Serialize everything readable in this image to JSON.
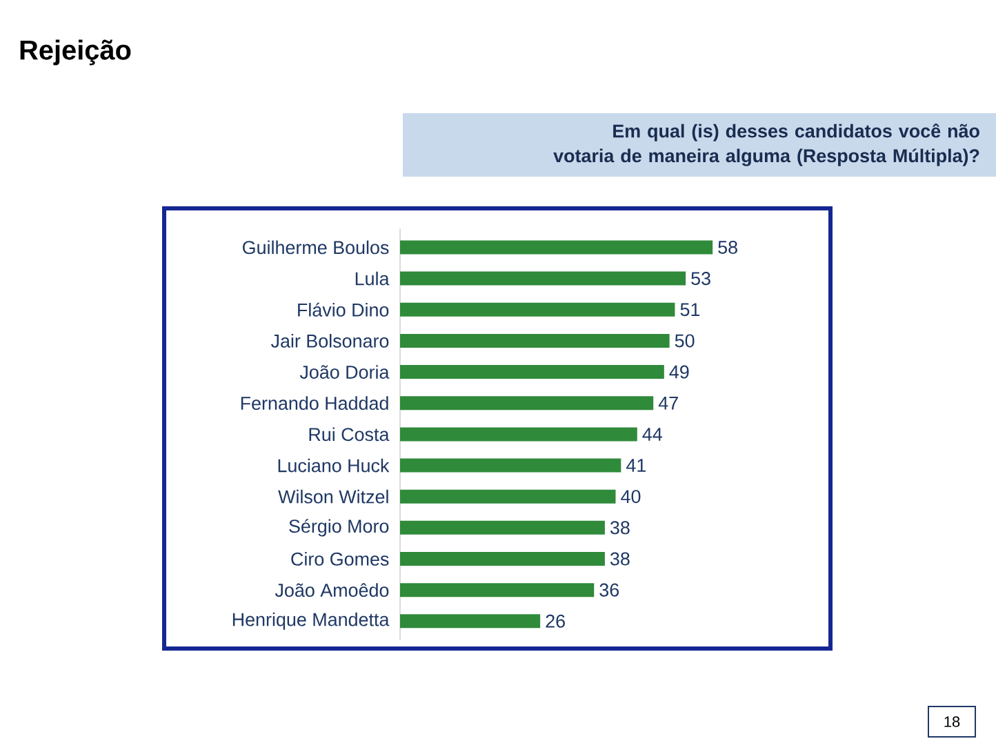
{
  "chart_data": {
    "type": "bar",
    "orientation": "horizontal",
    "title": "Rejeição",
    "subtitle": "Em qual (is) desses candidatos você não votaria de maneira alguma (Resposta Múltipla)?",
    "categories": [
      "Guilherme Boulos",
      "Lula",
      "Flávio Dino",
      "Jair Bolsonaro",
      "João Doria",
      "Fernando Haddad",
      "Rui Costa",
      "Luciano Huck",
      "Wilson Witzel",
      "Sérgio Moro",
      "Ciro Gomes",
      "João Amoêdo",
      "Henrique Mandetta"
    ],
    "values": [
      58,
      53,
      51,
      50,
      49,
      47,
      44,
      41,
      40,
      38,
      38,
      36,
      26
    ],
    "color": "#2f8a3a",
    "data_labels": true,
    "tick_labels": "y",
    "annotations": [
      "18"
    ]
  }
}
